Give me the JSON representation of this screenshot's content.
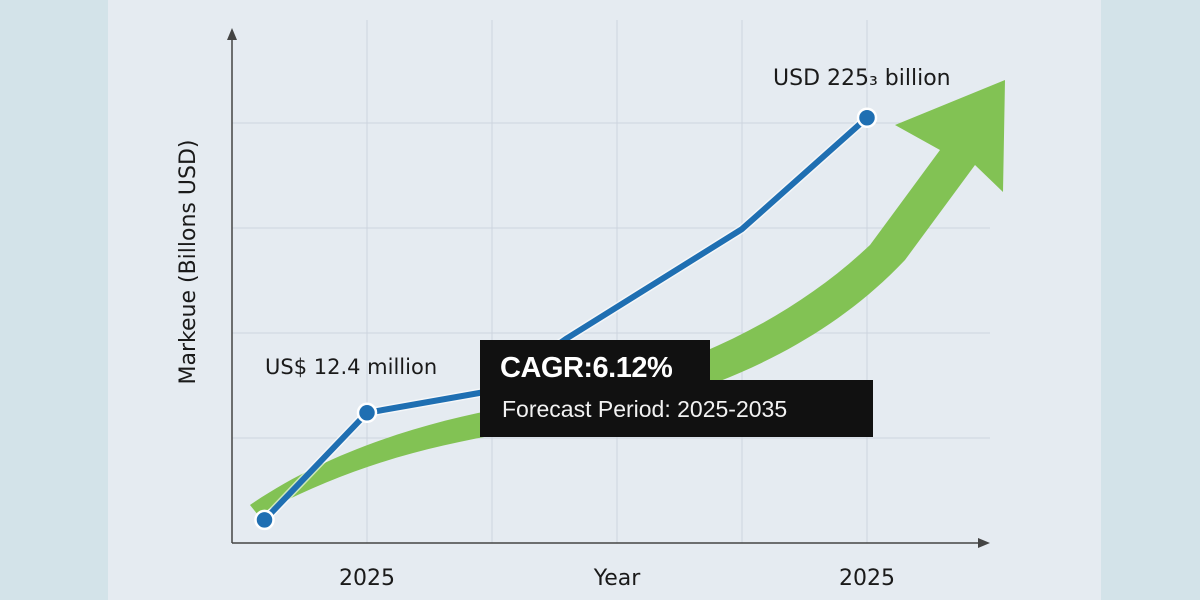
{
  "chart_data": {
    "type": "line",
    "title": "",
    "xlabel": "Year",
    "ylabel": "Markeue (Billons USD)",
    "x_tick_labels": [
      {
        "x": 1,
        "label": "2025"
      },
      {
        "x": 5,
        "label": "2025"
      }
    ],
    "grid": true,
    "xlim": [
      -0.2,
      5.0
    ],
    "ylim": [
      0,
      5
    ],
    "series": [
      {
        "color": "#1f6fb2",
        "points": [
          [
            0.18,
            0.22
          ],
          [
            1,
            1.24
          ],
          [
            2.0,
            1.45
          ],
          [
            2.6,
            1.95
          ],
          [
            4,
            2.99
          ],
          [
            5,
            4.05
          ]
        ],
        "markers": [
          0,
          1,
          5
        ]
      }
    ],
    "annotations": [
      {
        "text": "US$ 12.4 million",
        "point": 1
      },
      {
        "text": "USD 225₃ billion",
        "point": 5
      }
    ],
    "trend_arrow_color": "#7cc04b",
    "callout": {
      "title": "CAGR:6.12%",
      "subtitle": "Forecast Period: 2025-2035"
    }
  }
}
